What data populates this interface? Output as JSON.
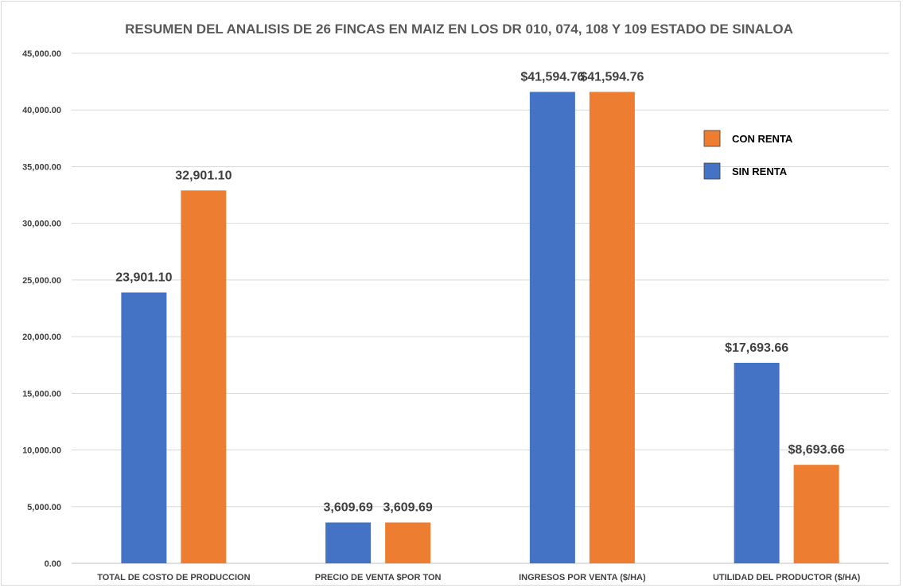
{
  "chart_data": {
    "type": "bar",
    "title": "RESUMEN DEL ANALISIS DE 26  FINCAS EN MAIZ EN LOS DR 010, 074, 108 Y 109 ESTADO DE SINALOA",
    "xlabel": "",
    "ylabel": "",
    "categories": [
      "TOTAL DE COSTO DE PRODUCCION",
      "PRECIO DE VENTA $POR TON",
      "INGRESOS POR VENTA ($/HA)",
      "UTILIDAD DEL PRODUCTOR ($/HA)"
    ],
    "series": [
      {
        "name": "SIN RENTA",
        "color": "#4472c4",
        "values": [
          23901.1,
          3609.69,
          41594.76,
          17693.66
        ],
        "labels": [
          "23,901.10",
          "3,609.69",
          "$41,594.76",
          "$17,693.66"
        ]
      },
      {
        "name": "CON RENTA",
        "color": "#ed7d31",
        "values": [
          32901.1,
          3609.69,
          41594.76,
          8693.66
        ],
        "labels": [
          "32,901.10",
          "3,609.69",
          "$41,594.76",
          "$8,693.66"
        ]
      }
    ],
    "ylim": [
      0,
      45000
    ],
    "yticks": [
      0,
      5000,
      10000,
      15000,
      20000,
      25000,
      30000,
      35000,
      40000,
      45000
    ],
    "ytick_labels": [
      "0.00",
      "5,000.00",
      "10,000.00",
      "15,000.00",
      "20,000.00",
      "25,000.00",
      "30,000.00",
      "35,000.00",
      "40,000.00",
      "45,000.00"
    ],
    "grid": true,
    "legend": {
      "position": "top-right",
      "order": [
        "CON RENTA",
        "SIN RENTA"
      ]
    }
  }
}
